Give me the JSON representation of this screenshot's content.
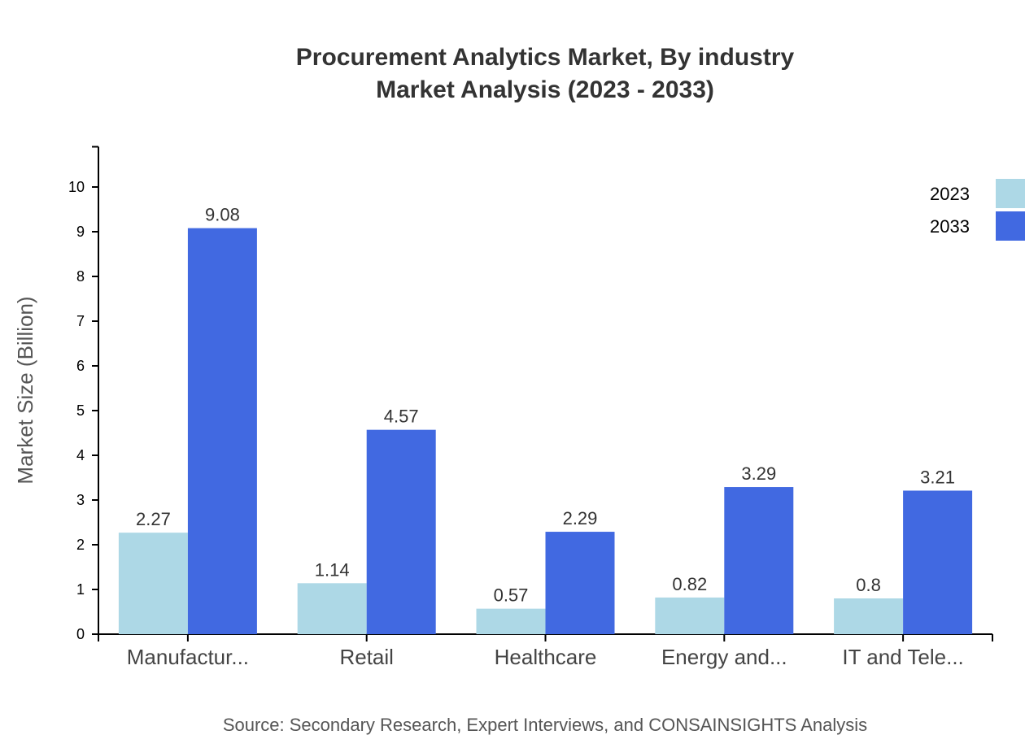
{
  "chart_data": {
    "type": "bar",
    "title": [
      "Procurement Analytics Market, By industry",
      "Market Analysis (2023 - 2033)"
    ],
    "xlabel": "",
    "ylabel": "Market Size (Billion)",
    "categories": [
      "Manufactur...",
      "Retail",
      "Healthcare",
      "Energy and...",
      "IT and Tele..."
    ],
    "series": [
      {
        "name": "2023",
        "color": "#ADD8E6",
        "values": [
          2.27,
          1.14,
          0.57,
          0.82,
          0.8
        ]
      },
      {
        "name": "2033",
        "color": "#4169E1",
        "values": [
          9.08,
          4.57,
          2.29,
          3.29,
          3.21
        ]
      }
    ],
    "data_labels": [
      [
        "2.27",
        "1.14",
        "0.57",
        "0.82",
        "0.8"
      ],
      [
        "9.08",
        "4.57",
        "2.29",
        "3.29",
        "3.21"
      ]
    ],
    "yticks": [
      0,
      1,
      2,
      3,
      4,
      5,
      6,
      7,
      8,
      9,
      10
    ],
    "ylim": [
      0,
      10.9
    ],
    "grid": false,
    "legend": "top-right",
    "source": "Source: Secondary Research, Expert Interviews, and CONSAINSIGHTS Analysis"
  }
}
